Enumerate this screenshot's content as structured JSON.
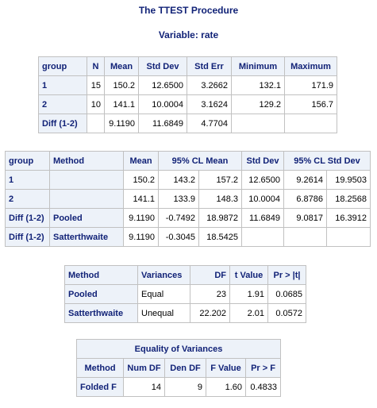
{
  "procedure_title": "The TTEST Procedure",
  "variable_title": "Variable: rate",
  "stats_table": {
    "headers": [
      "group",
      "N",
      "Mean",
      "Std Dev",
      "Std Err",
      "Minimum",
      "Maximum"
    ],
    "rows": [
      [
        "1",
        "15",
        "150.2",
        "12.6500",
        "3.2662",
        "132.1",
        "171.9"
      ],
      [
        "2",
        "10",
        "141.1",
        "10.0004",
        "3.1624",
        "129.2",
        "156.7"
      ],
      [
        "Diff (1-2)",
        "",
        "9.1190",
        "11.6849",
        "4.7704",
        "",
        ""
      ]
    ]
  },
  "cl_table": {
    "headers": [
      "group",
      "Method",
      "Mean",
      "95% CL Mean",
      "Std Dev",
      "95% CL Std Dev"
    ],
    "rows": [
      [
        "1",
        "",
        "150.2",
        "143.2",
        "157.2",
        "12.6500",
        "9.2614",
        "19.9503"
      ],
      [
        "2",
        "",
        "141.1",
        "133.9",
        "148.3",
        "10.0004",
        "6.8786",
        "18.2568"
      ],
      [
        "Diff (1-2)",
        "Pooled",
        "9.1190",
        "-0.7492",
        "18.9872",
        "11.6849",
        "9.0817",
        "16.3912"
      ],
      [
        "Diff (1-2)",
        "Satterthwaite",
        "9.1190",
        "-0.3045",
        "18.5425",
        "",
        "",
        ""
      ]
    ]
  },
  "ttest_table": {
    "headers": [
      "Method",
      "Variances",
      "DF",
      "t Value",
      "Pr > |t|"
    ],
    "rows": [
      [
        "Pooled",
        "Equal",
        "23",
        "1.91",
        "0.0685"
      ],
      [
        "Satterthwaite",
        "Unequal",
        "22.202",
        "2.01",
        "0.0572"
      ]
    ]
  },
  "equality_table": {
    "caption": "Equality of Variances",
    "headers": [
      "Method",
      "Num DF",
      "Den DF",
      "F Value",
      "Pr > F"
    ],
    "rows": [
      [
        "Folded F",
        "14",
        "9",
        "1.60",
        "0.4833"
      ]
    ]
  }
}
